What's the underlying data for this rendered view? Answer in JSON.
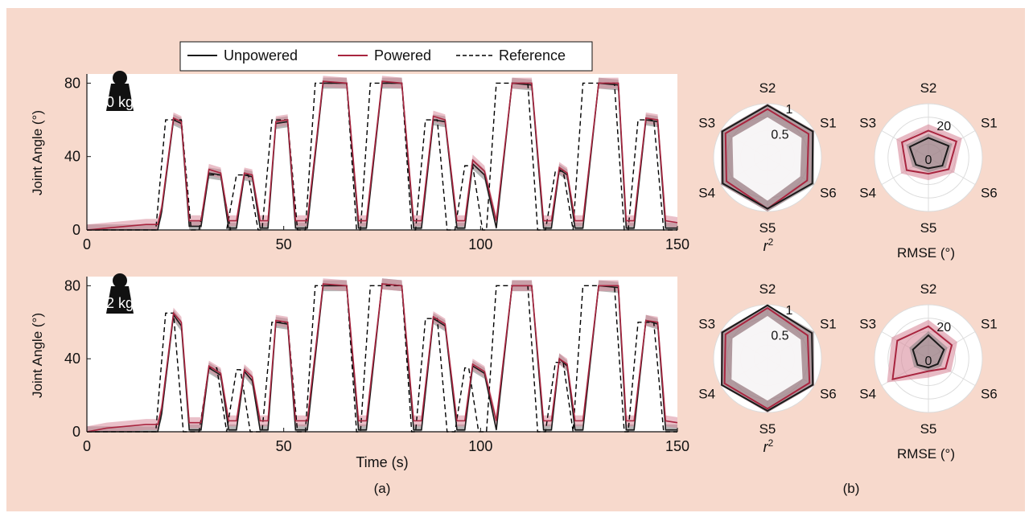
{
  "colors": {
    "background": "#f7d9cc",
    "unpowered": "#1a1a1a",
    "powered": "#a8253f",
    "reference": "#000000",
    "powered_band": "#d98c9c",
    "unpowered_band": "#7a7a7a"
  },
  "legend": {
    "entries": [
      "Unpowered",
      "Powered",
      "Reference"
    ]
  },
  "panels": {
    "a": "(a)",
    "b": "(b)"
  },
  "time_series": {
    "ylabel": "Joint Angle (°)",
    "xlabel": "Time (s)",
    "xticks": [
      "0",
      "50",
      "100",
      "150"
    ],
    "yticks": [
      "0",
      "40",
      "80"
    ],
    "plots": [
      {
        "weight": "0 kg"
      },
      {
        "weight": "2 kg"
      }
    ]
  },
  "radar": {
    "axes": [
      "S2",
      "S1",
      "S6",
      "S5",
      "S4",
      "S3"
    ],
    "r2_label": "r",
    "r2_sup": "2",
    "rmse_label": "RMSE (°)",
    "r2_ticks": [
      "0.5",
      "1"
    ],
    "rmse_ticks": [
      "0",
      "20"
    ]
  },
  "chart_data": [
    {
      "type": "line",
      "title": "0 kg",
      "xlabel": "Time (s)",
      "ylabel": "Joint Angle (°)",
      "xlim": [
        0,
        150
      ],
      "ylim": [
        0,
        85
      ],
      "grid": false,
      "legend_position": "top",
      "reference_trapezoids": [
        [
          19,
          25,
          60
        ],
        [
          30,
          35,
          30
        ],
        [
          37,
          42,
          30
        ],
        [
          46,
          52,
          60
        ],
        [
          57,
          67,
          80
        ],
        [
          71,
          81,
          80
        ],
        [
          85,
          90,
          60
        ],
        [
          95,
          99,
          35
        ],
        [
          103,
          113,
          80
        ],
        [
          118,
          122,
          32
        ],
        [
          125,
          135,
          80
        ],
        [
          139,
          145,
          60
        ]
      ],
      "series": [
        {
          "name": "Unpowered",
          "x": [
            0,
            18,
            19,
            22,
            24,
            26,
            29,
            31,
            34,
            36,
            38,
            40,
            42,
            44,
            46,
            48,
            51,
            53,
            56,
            60,
            66,
            69,
            71,
            75,
            80,
            83,
            85,
            88,
            91,
            94,
            96,
            98,
            101,
            104,
            108,
            113,
            116,
            118,
            120,
            122,
            124,
            126,
            130,
            135,
            137,
            139,
            142,
            145,
            147,
            150
          ],
          "y": [
            0,
            0,
            10,
            60,
            58,
            2,
            2,
            31,
            30,
            1,
            1,
            30,
            29,
            1,
            1,
            58,
            59,
            1,
            1,
            80,
            80,
            1,
            1,
            80,
            80,
            1,
            1,
            60,
            59,
            1,
            1,
            36,
            30,
            1,
            80,
            79,
            1,
            1,
            33,
            30,
            1,
            1,
            80,
            79,
            1,
            1,
            60,
            59,
            1,
            1
          ]
        },
        {
          "name": "Powered",
          "x": [
            0,
            5,
            10,
            15,
            18,
            19,
            22,
            24,
            26,
            29,
            31,
            34,
            36,
            38,
            40,
            42,
            44,
            46,
            48,
            51,
            53,
            56,
            60,
            66,
            69,
            71,
            75,
            80,
            83,
            85,
            88,
            91,
            94,
            96,
            98,
            101,
            104,
            108,
            113,
            116,
            118,
            120,
            122,
            124,
            126,
            130,
            135,
            137,
            139,
            142,
            145,
            147,
            150
          ],
          "y": [
            0,
            1,
            2,
            3,
            3,
            12,
            61,
            59,
            5,
            5,
            33,
            31,
            5,
            5,
            31,
            30,
            5,
            5,
            59,
            60,
            5,
            5,
            81,
            80,
            5,
            5,
            81,
            80,
            5,
            5,
            62,
            60,
            5,
            5,
            38,
            32,
            5,
            80,
            80,
            5,
            5,
            34,
            31,
            5,
            5,
            80,
            80,
            5,
            5,
            61,
            60,
            5,
            4
          ]
        }
      ]
    },
    {
      "type": "line",
      "title": "2 kg",
      "xlabel": "Time (s)",
      "ylabel": "Joint Angle (°)",
      "xlim": [
        0,
        150
      ],
      "ylim": [
        0,
        85
      ],
      "grid": false,
      "reference_trapezoids": [
        [
          19,
          23,
          65
        ],
        [
          30,
          34,
          35
        ],
        [
          37,
          40,
          34
        ],
        [
          46,
          52,
          60
        ],
        [
          57,
          67,
          80
        ],
        [
          71,
          81,
          80
        ],
        [
          85,
          90,
          62
        ],
        [
          95,
          98,
          35
        ],
        [
          103,
          113,
          80
        ],
        [
          118,
          122,
          38
        ],
        [
          125,
          135,
          80
        ],
        [
          139,
          145,
          60
        ]
      ],
      "series": [
        {
          "name": "Unpowered",
          "x": [
            0,
            18,
            19,
            22,
            24,
            26,
            29,
            31,
            34,
            36,
            38,
            40,
            42,
            44,
            46,
            48,
            51,
            53,
            56,
            60,
            66,
            69,
            71,
            75,
            80,
            83,
            85,
            88,
            91,
            94,
            96,
            98,
            101,
            104,
            108,
            113,
            116,
            118,
            120,
            122,
            124,
            126,
            130,
            135,
            137,
            139,
            142,
            145,
            147,
            150
          ],
          "y": [
            0,
            0,
            10,
            64,
            58,
            1,
            1,
            35,
            31,
            1,
            1,
            33,
            28,
            1,
            1,
            60,
            59,
            1,
            1,
            80,
            80,
            1,
            1,
            81,
            80,
            1,
            1,
            62,
            58,
            1,
            1,
            36,
            32,
            1,
            80,
            80,
            1,
            1,
            40,
            36,
            1,
            1,
            80,
            79,
            1,
            1,
            61,
            59,
            1,
            1
          ]
        },
        {
          "name": "Powered",
          "x": [
            0,
            5,
            10,
            15,
            18,
            19,
            22,
            24,
            26,
            29,
            31,
            34,
            36,
            38,
            40,
            42,
            44,
            46,
            48,
            51,
            53,
            56,
            60,
            66,
            69,
            71,
            75,
            80,
            83,
            85,
            88,
            91,
            94,
            96,
            98,
            101,
            104,
            108,
            113,
            116,
            118,
            120,
            122,
            124,
            126,
            130,
            135,
            137,
            139,
            142,
            145,
            147,
            150
          ],
          "y": [
            0,
            2,
            3,
            4,
            4,
            13,
            65,
            60,
            5,
            5,
            36,
            32,
            6,
            6,
            34,
            30,
            6,
            6,
            61,
            60,
            6,
            6,
            81,
            80,
            6,
            6,
            81,
            80,
            6,
            6,
            63,
            59,
            6,
            6,
            37,
            33,
            6,
            80,
            80,
            6,
            6,
            40,
            37,
            6,
            6,
            80,
            80,
            6,
            6,
            61,
            60,
            6,
            5
          ]
        }
      ]
    },
    {
      "type": "radar",
      "title": "0 kg r²",
      "axes": [
        "S2",
        "S1",
        "S6",
        "S5",
        "S4",
        "S3"
      ],
      "range": [
        0,
        1
      ],
      "series": [
        {
          "name": "Unpowered",
          "values": [
            0.97,
            0.97,
            0.96,
            0.95,
            0.96,
            0.97
          ]
        },
        {
          "name": "Powered",
          "values": [
            0.9,
            0.88,
            0.85,
            0.95,
            0.88,
            0.9
          ]
        }
      ]
    },
    {
      "type": "radar",
      "title": "0 kg RMSE (°)",
      "axes": [
        "S2",
        "S1",
        "S6",
        "S5",
        "S4",
        "S3"
      ],
      "range": [
        0,
        30
      ],
      "series": [
        {
          "name": "Unpowered",
          "values": [
            11,
            13,
            9,
            6,
            8,
            12
          ]
        },
        {
          "name": "Powered",
          "values": [
            15,
            18,
            13,
            9,
            14,
            17
          ]
        }
      ]
    },
    {
      "type": "radar",
      "title": "2 kg r²",
      "axes": [
        "S2",
        "S1",
        "S6",
        "S5",
        "S4",
        "S3"
      ],
      "range": [
        0,
        1
      ],
      "series": [
        {
          "name": "Unpowered",
          "values": [
            0.99,
            0.95,
            0.97,
            0.97,
            0.98,
            0.97
          ]
        },
        {
          "name": "Powered",
          "values": [
            0.94,
            0.86,
            0.9,
            0.93,
            0.92,
            0.9
          ]
        }
      ]
    },
    {
      "type": "radar",
      "title": "2 kg RMSE (°)",
      "axes": [
        "S2",
        "S1",
        "S6",
        "S5",
        "S4",
        "S3"
      ],
      "range": [
        0,
        30
      ],
      "series": [
        {
          "name": "Unpowered",
          "values": [
            13,
            10,
            6,
            5,
            7,
            10
          ]
        },
        {
          "name": "Powered",
          "values": [
            18,
            15,
            11,
            7,
            23,
            20
          ]
        }
      ]
    }
  ]
}
